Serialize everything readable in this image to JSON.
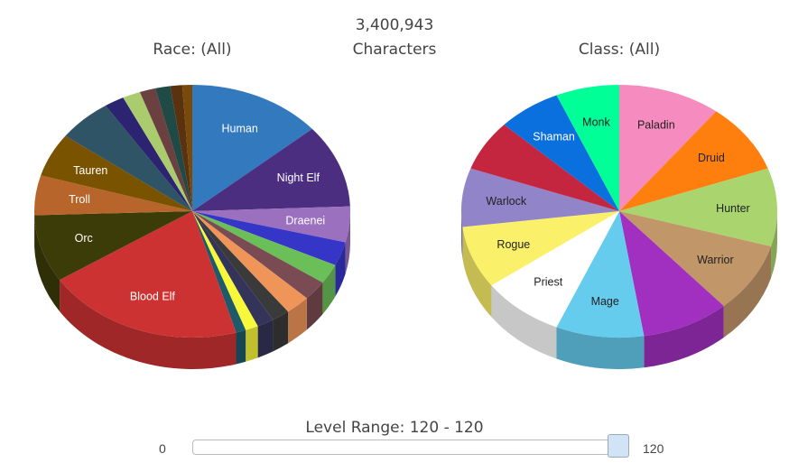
{
  "header": {
    "count": "3,400,943",
    "count_label": "Characters",
    "race_title": "Race: (All)",
    "class_title": "Class: (All)"
  },
  "level_range": {
    "label": "Level Range: 120 - 120",
    "min_label": "0",
    "max_label": "120",
    "scale_max": 120,
    "selected_low": 120,
    "selected_high": 120
  },
  "chart_data": [
    {
      "type": "pie",
      "title": "Race: (All)",
      "slices": [
        {
          "label": "Human",
          "value": 13.5,
          "color": "#3379bd"
        },
        {
          "label": "Night Elf",
          "value": 10.5,
          "color": "#4b2e80"
        },
        {
          "label": "Draenei",
          "value": 4.5,
          "color": "#9a70bf"
        },
        {
          "label": "",
          "value": 3.0,
          "color": "#3535c8"
        },
        {
          "label": "",
          "value": 2.5,
          "color": "#6abf58"
        },
        {
          "label": "",
          "value": 2.5,
          "color": "#7a4b52"
        },
        {
          "label": "",
          "value": 2.5,
          "color": "#ef955a"
        },
        {
          "label": "",
          "value": 1.8,
          "color": "#3a3a3a"
        },
        {
          "label": "",
          "value": 1.7,
          "color": "#34345a"
        },
        {
          "label": "",
          "value": 1.3,
          "color": "#f8f83a"
        },
        {
          "label": "",
          "value": 1.0,
          "color": "#1e5a6a"
        },
        {
          "label": "Blood Elf",
          "value": 20.0,
          "color": "#cd3232"
        },
        {
          "label": "Orc",
          "value": 8.5,
          "color": "#3b3c08"
        },
        {
          "label": "Troll",
          "value": 5.0,
          "color": "#b8652c"
        },
        {
          "label": "Tauren",
          "value": 5.5,
          "color": "#7a5300"
        },
        {
          "label": "",
          "value": 5.5,
          "color": "#2e5466"
        },
        {
          "label": "",
          "value": 2.0,
          "color": "#2c2470"
        },
        {
          "label": "",
          "value": 1.8,
          "color": "#aacc6e"
        },
        {
          "label": "",
          "value": 1.6,
          "color": "#6b4040"
        },
        {
          "label": "",
          "value": 1.5,
          "color": "#1f4a46"
        },
        {
          "label": "",
          "value": 1.2,
          "color": "#5a3210"
        },
        {
          "label": "",
          "value": 1.0,
          "color": "#7a4a0a"
        }
      ]
    },
    {
      "type": "pie",
      "title": "Class: (All)",
      "slices": [
        {
          "label": "Paladin",
          "value": 10.5,
          "color": "#f58bbf"
        },
        {
          "label": "Druid",
          "value": 9.0,
          "color": "#ff7f0e"
        },
        {
          "label": "Hunter",
          "value": 10.0,
          "color": "#aad46e"
        },
        {
          "label": "Warrior",
          "value": 9.0,
          "color": "#c19669"
        },
        {
          "label": "",
          "value": 9.0,
          "color": "#a12fc0"
        },
        {
          "label": "Mage",
          "value": 9.0,
          "color": "#66ccee"
        },
        {
          "label": "Priest",
          "value": 8.5,
          "color": "#ffffff"
        },
        {
          "label": "Rogue",
          "value": 8.0,
          "color": "#fbf06a"
        },
        {
          "label": "Warlock",
          "value": 7.5,
          "color": "#9184c8"
        },
        {
          "label": "",
          "value": 6.5,
          "color": "#c42640"
        },
        {
          "label": "Shaman",
          "value": 6.5,
          "color": "#0a70de"
        },
        {
          "label": "Monk",
          "value": 6.5,
          "color": "#00ff96"
        }
      ]
    }
  ]
}
